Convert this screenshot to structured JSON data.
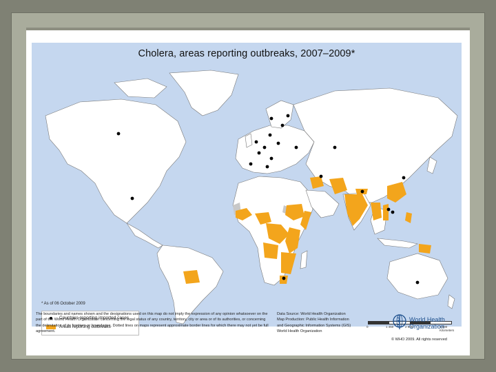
{
  "map": {
    "title": "Cholera, areas reporting outbreaks, 2007–2009*",
    "note": "* As of 06 October 2009",
    "legend": [
      {
        "symbol": "dot",
        "label": "Countries reporting imported cases",
        "color": "#000000"
      },
      {
        "symbol": "area",
        "label": "Areas reporting outbreaks",
        "color": "#f3a51c"
      }
    ],
    "scale_labels": [
      "0",
      "1 450",
      "2 900",
      "5 800 Kilometers"
    ],
    "disclaimer": "The boundaries and names shown and the designations used on this map do not imply the expression of any opinion whatsoever on the part of the World Health Organization concerning the legal status of any country, territory, city or area or of its authorities, or concerning the delimitation of its frontiers or boundaries. Dotted lines on maps represent approximate border lines for which there may not yet be full agreement.",
    "data_source": [
      "Data Source: World Health Organization",
      "Map Production: Public Health Information",
      "and Geographic Information Systems (GIS)",
      "World Health Organization"
    ],
    "organization": [
      "World Health",
      "Organization"
    ],
    "copyright": "© WHO 2009. All rights reserved",
    "colors": {
      "ocean": "#c5d7ef",
      "land": "#ffffff",
      "outbreak": "#f3a51c",
      "no_data": "#c8c8c8"
    },
    "icons": [
      "who-emblem-icon"
    ]
  }
}
